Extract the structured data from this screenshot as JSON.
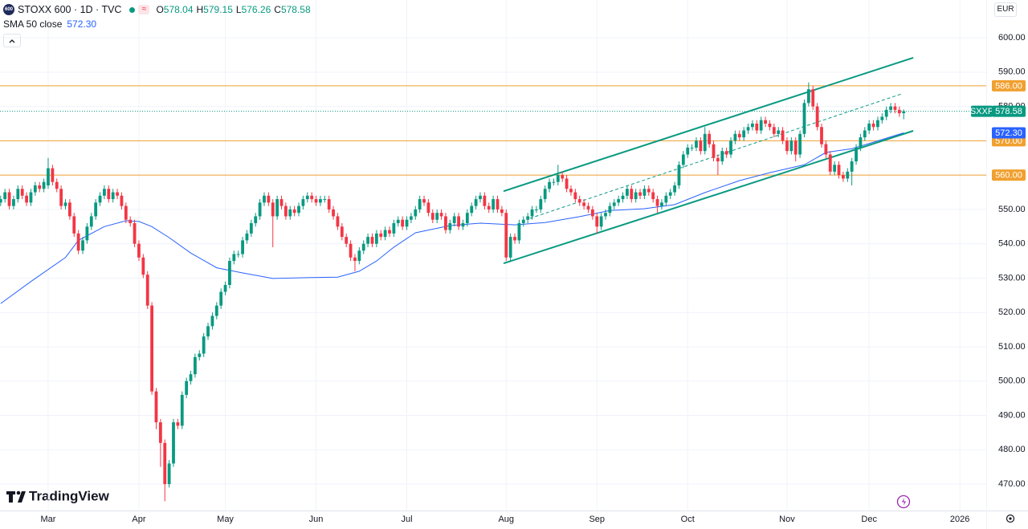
{
  "header": {
    "logo_text": "600",
    "symbol": "STOXX 600 · 1D · TVC",
    "ohlc": [
      {
        "key": "O",
        "value": "578.04"
      },
      {
        "key": "H",
        "value": "579.15"
      },
      {
        "key": "L",
        "value": "576.26"
      },
      {
        "key": "C",
        "value": "578.58"
      }
    ],
    "currency": "EUR",
    "watermark": "TradingView"
  },
  "chart_data": {
    "type": "candlestick",
    "grid": true,
    "up_color": "#089981",
    "down_color": "#f23645",
    "level_color": "#f0a030",
    "ylim": [
      462.3,
      611
    ],
    "yticks": [
      {
        "value": 470,
        "label": "470.00"
      },
      {
        "value": 480,
        "label": "480.00"
      },
      {
        "value": 490,
        "label": "490.00"
      },
      {
        "value": 500,
        "label": "500.00"
      },
      {
        "value": 510,
        "label": "510.00"
      },
      {
        "value": 520,
        "label": "520.00"
      },
      {
        "value": 530,
        "label": "530.00"
      },
      {
        "value": 540,
        "label": "540.00"
      },
      {
        "value": 550,
        "label": "550.00"
      },
      {
        "value": 560,
        "label": "560.00"
      },
      {
        "value": 570,
        "label": "570.00"
      },
      {
        "value": 580,
        "label": "580.00"
      },
      {
        "value": 590,
        "label": "590.00"
      },
      {
        "value": 600,
        "label": "600.00"
      }
    ],
    "categories": [
      null,
      null,
      null,
      null,
      null,
      null,
      null,
      null,
      null,
      null,
      null,
      "Mar",
      null,
      null,
      null,
      null,
      null,
      null,
      null,
      null,
      null,
      null,
      null,
      null,
      null,
      null,
      null,
      null,
      null,
      null,
      null,
      null,
      "Apr",
      null,
      null,
      null,
      null,
      null,
      null,
      null,
      null,
      null,
      null,
      null,
      null,
      null,
      null,
      null,
      null,
      null,
      null,
      null,
      "May",
      null,
      null,
      null,
      null,
      null,
      null,
      null,
      null,
      null,
      null,
      null,
      null,
      null,
      null,
      null,
      null,
      null,
      null,
      null,
      null,
      "Jun",
      null,
      null,
      null,
      null,
      null,
      null,
      null,
      null,
      null,
      null,
      null,
      null,
      null,
      null,
      null,
      null,
      null,
      null,
      null,
      null,
      "Jul",
      null,
      null,
      null,
      null,
      null,
      null,
      null,
      null,
      null,
      null,
      null,
      null,
      null,
      null,
      null,
      null,
      null,
      null,
      null,
      null,
      null,
      null,
      "Aug",
      null,
      null,
      null,
      null,
      null,
      null,
      null,
      null,
      null,
      null,
      null,
      null,
      null,
      null,
      null,
      null,
      null,
      null,
      null,
      null,
      "Sep",
      null,
      null,
      null,
      null,
      null,
      null,
      null,
      null,
      null,
      null,
      null,
      null,
      null,
      null,
      null,
      null,
      null,
      null,
      null,
      null,
      "Oct",
      null,
      null,
      null,
      null,
      null,
      null,
      null,
      null,
      null,
      null,
      null,
      null,
      null,
      null,
      null,
      null,
      null,
      null,
      null,
      null,
      null,
      null,
      "Nov",
      null,
      null,
      null,
      null,
      null,
      null,
      null,
      null,
      null,
      null,
      null,
      null,
      null,
      null,
      null,
      null,
      null,
      null,
      "Dec",
      null,
      null,
      null,
      null,
      null,
      null,
      null,
      null,
      null,
      null,
      null,
      null,
      null,
      null,
      null,
      null,
      null,
      null,
      null,
      null,
      "2026"
    ],
    "open": [
      552,
      553,
      555,
      551,
      553,
      556,
      554,
      552,
      555,
      557,
      556,
      557,
      562,
      558,
      556,
      551,
      552,
      548,
      543,
      538,
      541,
      545,
      548,
      552,
      554,
      556,
      553,
      555,
      554,
      551,
      547,
      546,
      540,
      536,
      531,
      522,
      497,
      488,
      482,
      470,
      476,
      488,
      487,
      496,
      500,
      502,
      507,
      508,
      513,
      516,
      519,
      522,
      526,
      528,
      535,
      537,
      537,
      541,
      543,
      546,
      548,
      552,
      554,
      552,
      548,
      553,
      551,
      548,
      550,
      549,
      551,
      553,
      554,
      553,
      552,
      553,
      553,
      550,
      548,
      545,
      542,
      540,
      536,
      535,
      538,
      540,
      542,
      540,
      543,
      542,
      544,
      543,
      546,
      547,
      545,
      547,
      548,
      550,
      553,
      552,
      549,
      547,
      549,
      548,
      544,
      546,
      548,
      545,
      546,
      549,
      551,
      553,
      554,
      551,
      550,
      553,
      550,
      549,
      536,
      542,
      541,
      546,
      547,
      548,
      550,
      550,
      553,
      556,
      558,
      558,
      560,
      559,
      556,
      555,
      553,
      552,
      551,
      550,
      548,
      545,
      548,
      549,
      551,
      552,
      553,
      554,
      556,
      553,
      555,
      554,
      556,
      555,
      553,
      551,
      552,
      554,
      555,
      557,
      563,
      566,
      568,
      568,
      570,
      567,
      572,
      569,
      565,
      564,
      567,
      566,
      570,
      572,
      571,
      573,
      574,
      575,
      573,
      576,
      575,
      574,
      572,
      573,
      570,
      567,
      570,
      566,
      572,
      581,
      585,
      580,
      574,
      569,
      566,
      561,
      563,
      560,
      559,
      561,
      564,
      568,
      571,
      573,
      575,
      574,
      576,
      577,
      579,
      580,
      579,
      578.04,
      null,
      null,
      null,
      null,
      null,
      null,
      null,
      null,
      null,
      null,
      null,
      null,
      null
    ],
    "high": [
      554,
      556,
      556,
      554,
      557,
      557,
      555,
      556,
      558,
      558,
      559,
      565,
      563,
      559,
      557,
      553,
      553,
      549,
      544,
      542,
      546,
      549,
      553,
      555,
      557,
      557,
      556,
      556,
      555,
      552,
      548,
      547,
      541,
      537,
      532,
      523,
      498,
      489,
      483,
      477,
      489,
      489,
      497,
      501,
      503,
      508,
      509,
      514,
      517,
      520,
      523,
      527,
      529,
      536,
      538,
      538,
      542,
      544,
      547,
      549,
      553,
      555,
      555,
      553,
      554,
      554,
      552,
      551,
      551,
      552,
      554,
      555,
      555,
      554,
      554,
      554,
      554,
      551,
      549,
      546,
      543,
      541,
      537,
      539,
      541,
      543,
      543,
      544,
      544,
      545,
      545,
      547,
      548,
      548,
      548,
      549,
      551,
      554,
      554,
      553,
      550,
      550,
      550,
      549,
      547,
      549,
      549,
      547,
      550,
      552,
      554,
      555,
      555,
      552,
      554,
      554,
      551,
      550,
      543,
      543,
      547,
      548,
      549,
      551,
      551,
      554,
      557,
      559,
      559,
      563,
      561,
      560,
      557,
      556,
      554,
      553,
      552,
      551,
      549,
      549,
      550,
      552,
      553,
      554,
      555,
      557,
      557,
      556,
      556,
      557,
      557,
      556,
      554,
      553,
      555,
      556,
      558,
      564,
      567,
      569,
      569,
      571,
      571,
      574,
      573,
      570,
      566,
      568,
      568,
      571,
      573,
      573,
      574,
      575,
      576,
      576,
      577,
      577,
      576,
      575,
      574,
      574,
      571,
      571,
      571,
      573,
      582,
      587,
      586,
      581,
      575,
      570,
      567,
      564,
      564,
      561,
      562,
      565,
      569,
      572,
      574,
      576,
      576,
      577,
      578,
      580,
      581,
      581,
      580,
      579.15,
      null,
      null,
      null,
      null,
      null,
      null,
      null,
      null,
      null,
      null,
      null,
      null,
      null
    ],
    "low": [
      551,
      552,
      550,
      550,
      552,
      553,
      551,
      551,
      554,
      555,
      555,
      556,
      557,
      555,
      550,
      550,
      547,
      542,
      537,
      537,
      540,
      544,
      547,
      551,
      553,
      552,
      552,
      553,
      550,
      546,
      545,
      539,
      535,
      530,
      521,
      496,
      486,
      475,
      465,
      469,
      475,
      486,
      486,
      495,
      499,
      501,
      506,
      507,
      512,
      515,
      518,
      521,
      525,
      527,
      534,
      536,
      536,
      540,
      542,
      545,
      547,
      551,
      551,
      539,
      547,
      550,
      547,
      547,
      548,
      548,
      550,
      552,
      552,
      551,
      551,
      552,
      549,
      547,
      544,
      541,
      539,
      535,
      532,
      534,
      537,
      539,
      539,
      539,
      541,
      541,
      542,
      542,
      545,
      544,
      544,
      546,
      547,
      549,
      551,
      548,
      546,
      546,
      547,
      543,
      543,
      545,
      544,
      544,
      545,
      548,
      550,
      552,
      550,
      549,
      549,
      549,
      548,
      535,
      535,
      540,
      540,
      545,
      546,
      547,
      549,
      549,
      552,
      555,
      557,
      557,
      558,
      555,
      554,
      552,
      551,
      550,
      549,
      547,
      543,
      544,
      547,
      548,
      550,
      551,
      552,
      553,
      552,
      552,
      553,
      553,
      554,
      552,
      549,
      550,
      551,
      553,
      554,
      556,
      562,
      565,
      567,
      567,
      566,
      566,
      568,
      564,
      560,
      563,
      565,
      565,
      569,
      570,
      570,
      572,
      573,
      572,
      572,
      574,
      573,
      571,
      571,
      569,
      566,
      566,
      564,
      565,
      571,
      580,
      579,
      573,
      568,
      565,
      560,
      560,
      559,
      558,
      558,
      557,
      563,
      567,
      570,
      572,
      573,
      573,
      575,
      576,
      578,
      578,
      577,
      576.26,
      null,
      null,
      null,
      null,
      null,
      null,
      null,
      null,
      null,
      null,
      null,
      null,
      null
    ],
    "close": [
      553,
      555,
      551,
      553,
      556,
      554,
      552,
      555,
      557,
      556,
      558,
      562,
      558,
      556,
      551,
      552,
      548,
      543,
      538,
      541,
      545,
      548,
      552,
      554,
      556,
      553,
      555,
      554,
      551,
      547,
      546,
      540,
      536,
      531,
      522,
      497,
      488,
      482,
      470,
      476,
      488,
      487,
      496,
      500,
      502,
      507,
      508,
      513,
      516,
      519,
      522,
      526,
      528,
      535,
      537,
      537,
      541,
      543,
      546,
      548,
      552,
      554,
      552,
      548,
      553,
      551,
      548,
      550,
      549,
      551,
      553,
      554,
      553,
      552,
      553,
      553,
      550,
      548,
      545,
      542,
      540,
      536,
      535,
      538,
      540,
      542,
      540,
      543,
      542,
      544,
      543,
      546,
      547,
      545,
      547,
      548,
      550,
      553,
      552,
      549,
      547,
      549,
      548,
      544,
      546,
      548,
      545,
      546,
      549,
      551,
      553,
      554,
      551,
      550,
      553,
      550,
      549,
      536,
      542,
      541,
      546,
      547,
      548,
      550,
      550,
      553,
      556,
      558,
      558,
      560,
      559,
      556,
      555,
      553,
      552,
      551,
      550,
      548,
      545,
      548,
      549,
      551,
      552,
      553,
      554,
      556,
      553,
      555,
      554,
      556,
      555,
      553,
      551,
      552,
      554,
      555,
      557,
      563,
      566,
      568,
      568,
      570,
      567,
      572,
      569,
      565,
      564,
      567,
      566,
      570,
      572,
      571,
      573,
      574,
      575,
      573,
      576,
      575,
      574,
      572,
      573,
      570,
      567,
      570,
      566,
      572,
      581,
      585,
      580,
      574,
      569,
      566,
      561,
      563,
      560,
      559,
      561,
      564,
      568,
      571,
      573,
      575,
      574,
      576,
      577,
      579,
      580,
      579,
      578,
      578.58,
      null,
      null,
      null,
      null,
      null,
      null,
      null,
      null,
      null,
      null,
      null,
      null,
      null
    ],
    "sma": {
      "name": "SMA 50 close",
      "color": "#2962ff",
      "x": [
        0,
        7,
        15,
        18,
        24,
        29,
        32,
        35,
        39,
        44,
        50,
        56,
        63,
        70,
        78,
        83,
        87,
        91,
        96,
        104,
        111,
        119,
        126,
        134,
        141,
        149,
        156,
        163,
        171,
        178,
        186,
        191,
        197,
        202,
        209
      ],
      "values": [
        522.6,
        529,
        536,
        541,
        545,
        546.7,
        546.5,
        545,
        541.8,
        537.3,
        533,
        531.5,
        529.9,
        530.1,
        530.3,
        532,
        535,
        539,
        543.2,
        545.3,
        546,
        545.5,
        546.2,
        547.9,
        549.7,
        550.2,
        551.4,
        554.9,
        558.4,
        560.7,
        563,
        566.6,
        567.7,
        569.6,
        572.3
      ],
      "last": {
        "value": 572.3,
        "label": "572.30"
      }
    },
    "trendlines": [
      {
        "color": "#089981",
        "dashed": false,
        "x": [
          116.4,
          211.2
        ],
        "values": [
          555.3,
          594.2
        ]
      },
      {
        "color": "#089981",
        "dashed": false,
        "x": [
          116.4,
          211.2
        ],
        "values": [
          534.3,
          572.9
        ]
      },
      {
        "color": "#089981",
        "dashed": true,
        "x": [
          122.5,
          208.4
        ],
        "values": [
          547.4,
          583.6
        ]
      }
    ],
    "levels": [
      {
        "value": 586,
        "label": "586.00"
      },
      {
        "value": 570,
        "label": "570.00"
      },
      {
        "value": 560,
        "label": "560.00"
      }
    ],
    "last_price": {
      "symbol": "SXXP",
      "value": 578.58,
      "label": "578.58",
      "color": "#089981"
    }
  }
}
